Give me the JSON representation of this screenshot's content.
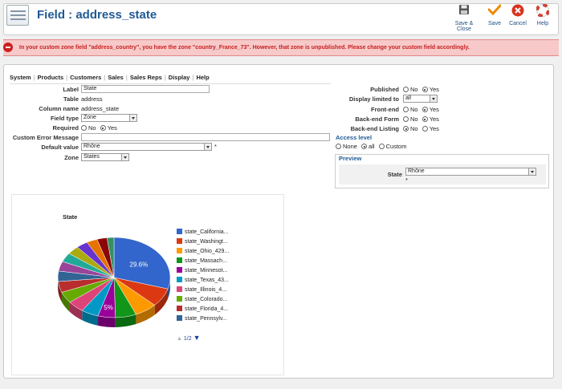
{
  "header": {
    "title": "Field : address_state",
    "buttons": {
      "save_close": "Save & Close",
      "save": "Save",
      "cancel": "Cancel",
      "help": "Help"
    }
  },
  "error": {
    "message": "In your custom zone field \"address_country\", you have the zone \"country_France_73\". However, that zone is unpublished. Please change your custom field accordingly."
  },
  "tabs": [
    "System",
    "Products",
    "Customers",
    "Sales",
    "Sales Reps",
    "Display",
    "Help"
  ],
  "form_left": {
    "label": {
      "label": "Label",
      "value": "State"
    },
    "table": {
      "label": "Table",
      "value": "address"
    },
    "column_name": {
      "label": "Column name",
      "value": "address_state"
    },
    "field_type": {
      "label": "Field type",
      "value": "Zone"
    },
    "required": {
      "label": "Required",
      "no": "No",
      "yes": "Yes",
      "selected": "Yes"
    },
    "custom_error": {
      "label": "Custom Error Message",
      "value": ""
    },
    "default_value": {
      "label": "Default value",
      "value": "Rhône",
      "asterisk": "*"
    },
    "zone": {
      "label": "Zone",
      "value": "States"
    }
  },
  "form_right": {
    "published": {
      "label": "Published",
      "no": "No",
      "yes": "Yes",
      "selected": "Yes"
    },
    "display_limited": {
      "label": "Display limited to",
      "value": "all"
    },
    "front_end": {
      "label": "Front-end",
      "no": "No",
      "yes": "Yes",
      "selected": "Yes"
    },
    "backend_form": {
      "label": "Back-end Form",
      "no": "No",
      "yes": "Yes",
      "selected": "Yes"
    },
    "backend_listing": {
      "label": "Back-end Listing",
      "no": "No",
      "yes": "Yes",
      "selected": "No"
    },
    "access_level": {
      "title": "Access level",
      "none": "None",
      "all": "all",
      "custom": "Custom",
      "selected": "all"
    },
    "preview": {
      "legend": "Preview",
      "state_label": "State",
      "state_value": "Rhône",
      "asterisk": "*"
    }
  },
  "chart_data": {
    "type": "pie",
    "title": "State",
    "slices": [
      {
        "label": "state_California...",
        "value": 29.6,
        "color": "#3366cc"
      },
      {
        "label": "state_Washingt...",
        "value": 7.5,
        "color": "#dc3912"
      },
      {
        "label": "state_Ohio_429...",
        "value": 6.5,
        "color": "#ff9900"
      },
      {
        "label": "state_Massach...",
        "value": 6.0,
        "color": "#109618"
      },
      {
        "label": "state_Minnesot...",
        "value": 5.0,
        "color": "#990099"
      },
      {
        "label": "state_Texas_43...",
        "value": 5.0,
        "color": "#0099c6"
      },
      {
        "label": "state_Illinois_4...",
        "value": 4.8,
        "color": "#dd4477"
      },
      {
        "label": "state_Colorado...",
        "value": 4.6,
        "color": "#66aa00"
      },
      {
        "label": "state_Florida_4...",
        "value": 4.4,
        "color": "#b82e2e"
      },
      {
        "label": "state_Pennsylv...",
        "value": 4.2,
        "color": "#316395"
      },
      {
        "label": "",
        "value": 3.9,
        "color": "#994499"
      },
      {
        "label": "",
        "value": 3.7,
        "color": "#22aa99"
      },
      {
        "label": "",
        "value": 3.5,
        "color": "#aaaa11"
      },
      {
        "label": "",
        "value": 3.3,
        "color": "#6633cc"
      },
      {
        "label": "",
        "value": 3.1,
        "color": "#e67300"
      },
      {
        "label": "",
        "value": 2.9,
        "color": "#8b0707"
      },
      {
        "label": "",
        "value": 2.0,
        "color": "#329262"
      }
    ],
    "slice_labels": [
      "29.6%",
      "5%"
    ],
    "legend_placement": "right",
    "pager": "1/2"
  }
}
